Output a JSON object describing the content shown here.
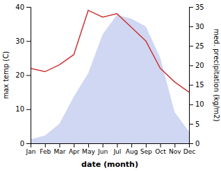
{
  "chart_data": {
    "type": "line",
    "xlabel": "date (month)",
    "ylabel": "max temp (C)",
    "y2label": "med. precipitation (kg/m2)",
    "categories": [
      "Jan",
      "Feb",
      "Mar",
      "Apr",
      "May",
      "Jun",
      "Jul",
      "Aug",
      "Sep",
      "Oct",
      "Nov",
      "Dec"
    ],
    "series": [
      {
        "type": "area",
        "axis": "y2",
        "color": "#c8d0f0",
        "values": [
          1,
          2,
          5,
          12,
          18,
          28,
          33,
          32,
          30,
          22,
          8,
          3
        ]
      },
      {
        "type": "line",
        "color": "#cc3333",
        "values": [
          22,
          21,
          23,
          26,
          39,
          37,
          38,
          34,
          30,
          22,
          18,
          15
        ]
      }
    ],
    "ylim": [
      0,
      40
    ],
    "yticks": [
      0,
      10,
      20,
      30,
      40
    ],
    "y2lim": [
      0,
      35
    ],
    "y2ticks": [
      0,
      5,
      10,
      15,
      20,
      25,
      30,
      35
    ]
  }
}
